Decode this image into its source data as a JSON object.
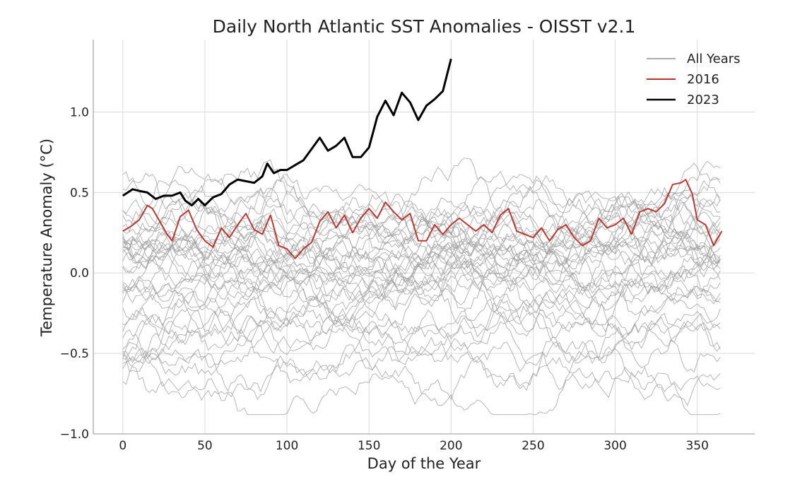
{
  "chart_data": {
    "type": "line",
    "title": "Daily North Atlantic SST Anomalies - OISST v2.1",
    "xlabel": "Day of the Year",
    "ylabel": "Temperature Anomaly (°C)",
    "xlim": [
      -18,
      385
    ],
    "ylim": [
      -1.0,
      1.45
    ],
    "xticks": [
      0,
      50,
      100,
      150,
      200,
      250,
      300,
      350
    ],
    "xtick_labels": [
      "0",
      "50",
      "100",
      "150",
      "200",
      "250",
      "300",
      "350"
    ],
    "yticks": [
      -1.0,
      -0.5,
      0.0,
      0.5,
      1.0
    ],
    "ytick_labels": [
      "−1.0",
      "−0.5",
      "0.0",
      "0.5",
      "1.0"
    ],
    "grid": true,
    "legend_position": "top-right",
    "legend": [
      {
        "label": "All Years",
        "color": "#a0a0a0"
      },
      {
        "label": "2016",
        "color": "#c0302a"
      },
      {
        "label": "2023",
        "color": "#000000"
      }
    ],
    "background_years": {
      "color": "#a0a0a0",
      "x_range": [
        0,
        365
      ],
      "count": 40,
      "y_band": [
        -0.88,
        0.75
      ],
      "start_levels": [
        -0.73,
        -0.66,
        -0.58,
        -0.53,
        -0.49,
        -0.46,
        -0.42,
        -0.36,
        -0.31,
        -0.26,
        -0.22,
        -0.18,
        -0.13,
        -0.09,
        -0.05,
        -0.02,
        0.01,
        0.03,
        0.05,
        0.07,
        0.09,
        0.11,
        0.13,
        0.15,
        0.17,
        0.19,
        0.21,
        0.23,
        0.25,
        0.27,
        0.3,
        0.33,
        0.36,
        0.4,
        0.44,
        0.48,
        0.52,
        0.55,
        -0.6,
        -0.4
      ],
      "end_levels": [
        -0.8,
        -0.65,
        -0.48,
        -0.45,
        -0.3,
        -0.25,
        -0.18,
        -0.12,
        -0.05,
        -0.02,
        0.02,
        0.05,
        0.08,
        0.1,
        0.12,
        0.15,
        0.18,
        0.2,
        0.22,
        0.25,
        0.28,
        0.3,
        0.35,
        0.4,
        0.45,
        0.5,
        -0.7,
        -0.55,
        -0.35,
        -0.2,
        -0.1,
        0.0,
        0.06,
        0.14,
        0.24,
        0.32,
        0.38,
        0.42,
        0.48,
        0.52
      ]
    },
    "series": [
      {
        "name": "2016",
        "color": "#c0302a",
        "x": [
          0,
          5,
          10,
          15,
          18,
          22,
          27,
          30,
          35,
          40,
          45,
          50,
          55,
          60,
          65,
          70,
          75,
          80,
          85,
          90,
          95,
          100,
          105,
          110,
          115,
          120,
          125,
          130,
          135,
          140,
          145,
          150,
          155,
          160,
          165,
          170,
          175,
          180,
          185,
          190,
          195,
          200,
          205,
          210,
          215,
          220,
          225,
          230,
          235,
          240,
          245,
          250,
          255,
          260,
          265,
          270,
          275,
          280,
          285,
          290,
          295,
          300,
          305,
          310,
          315,
          320,
          325,
          330,
          335,
          340,
          343,
          347,
          350,
          355,
          360,
          365
        ],
        "values": [
          0.26,
          0.29,
          0.33,
          0.42,
          0.4,
          0.33,
          0.24,
          0.2,
          0.35,
          0.39,
          0.27,
          0.2,
          0.16,
          0.28,
          0.22,
          0.3,
          0.37,
          0.27,
          0.24,
          0.36,
          0.17,
          0.15,
          0.09,
          0.15,
          0.19,
          0.32,
          0.38,
          0.28,
          0.36,
          0.25,
          0.34,
          0.4,
          0.34,
          0.44,
          0.38,
          0.33,
          0.37,
          0.2,
          0.2,
          0.3,
          0.24,
          0.3,
          0.34,
          0.3,
          0.26,
          0.3,
          0.25,
          0.36,
          0.4,
          0.26,
          0.24,
          0.22,
          0.28,
          0.2,
          0.27,
          0.3,
          0.22,
          0.17,
          0.2,
          0.34,
          0.28,
          0.3,
          0.34,
          0.24,
          0.38,
          0.4,
          0.38,
          0.43,
          0.55,
          0.56,
          0.58,
          0.49,
          0.33,
          0.3,
          0.17,
          0.26
        ]
      },
      {
        "name": "2023",
        "color": "#000000",
        "x": [
          0,
          3,
          6,
          10,
          15,
          20,
          25,
          30,
          35,
          38,
          42,
          46,
          50,
          55,
          60,
          65,
          70,
          75,
          80,
          85,
          88,
          92,
          96,
          100,
          105,
          110,
          115,
          120,
          125,
          130,
          135,
          140,
          145,
          150,
          155,
          160,
          165,
          170,
          175,
          180,
          185,
          190,
          195,
          200
        ],
        "values": [
          0.48,
          0.5,
          0.52,
          0.51,
          0.5,
          0.46,
          0.48,
          0.48,
          0.5,
          0.45,
          0.42,
          0.46,
          0.42,
          0.47,
          0.49,
          0.55,
          0.58,
          0.57,
          0.56,
          0.6,
          0.68,
          0.62,
          0.64,
          0.64,
          0.67,
          0.7,
          0.77,
          0.84,
          0.76,
          0.79,
          0.84,
          0.72,
          0.72,
          0.78,
          0.97,
          1.07,
          0.98,
          1.12,
          1.06,
          0.95,
          1.04,
          1.08,
          1.13,
          1.33
        ]
      }
    ]
  }
}
